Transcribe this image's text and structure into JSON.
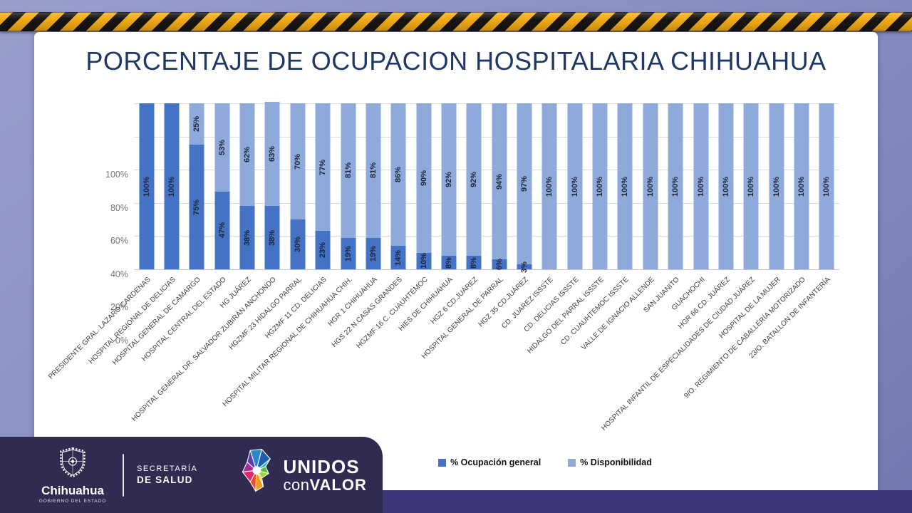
{
  "title": "PORCENTAJE DE OCUPACION HOSPITALARIA CHIHUAHUA",
  "chart_data": {
    "type": "bar",
    "stacked": true,
    "ylim": [
      0,
      100
    ],
    "y_ticks": [
      "0%",
      "20%",
      "40%",
      "60%",
      "80%",
      "100%"
    ],
    "grid": true,
    "legend_position": "bottom",
    "categories": [
      "PRESIDENTE GRAL. LAZARO CARDENAS",
      "HOSPITAL REGIONAL DE DELICIAS",
      "HOSPITAL GENERAL DE CAMARGO",
      "HOSPITAL CENTRAL DEL ESTADO",
      "HG  JUÁREZ",
      "HOSPITAL GENERAL DR. SALVADOR ZUBIRÁN ANCHONDO",
      "HGZMF 23 HIDALGO PARRAL",
      "HGZMF 11 CD. DELICIAS",
      "HOSPITAL MILITAR REGIONAL DE CHIHUAHUA CHIH.",
      "HGR 1 CHIHUAHUA",
      "HGS 22 N.CASAS GRANDES",
      "HGZMF 16 C. CUAUHTÉMOC",
      "HIES DE CHIHUAHUA",
      "HGZ 6 CD.JUÁREZ",
      "HOSPITAL GENERAL DE PARRAL",
      "HGZ 35 CD.JUÁREZ",
      "CD. JUAREZ ISSSTE",
      "CD. DELICIAS ISSSTE",
      "HIDALGO DEL PARRAL ISSSTE",
      "CD. CUAUHTEMOC ISSSTE",
      "VALLE DE IGNACIO ALLENDE",
      "SAN JUANITO",
      "GUACHOCHI",
      "HGR 66 CD. JUÁREZ",
      "HOSPITAL INFANTIL DE ESPECIALIDADES DE CIUDAD JUÁREZ",
      "HOSPITAL DE LA MUJER",
      "9/O. REGIMIENTO DE CABALLERÍA MOTORIZADO",
      "23/O. BATALLON DE INFANTERÍA"
    ],
    "series": [
      {
        "name": "% Ocupación general",
        "color": "#4472C4",
        "values": [
          100,
          100,
          75,
          47,
          38,
          38,
          30,
          23,
          19,
          19,
          14,
          10,
          8,
          8,
          6,
          3,
          0,
          0,
          0,
          0,
          0,
          0,
          0,
          0,
          0,
          0,
          0,
          0
        ]
      },
      {
        "name": "% Disponibilidad",
        "color": "#8EAADB",
        "values": [
          0,
          0,
          25,
          53,
          62,
          63,
          70,
          77,
          81,
          81,
          86,
          90,
          92,
          92,
          94,
          97,
          100,
          100,
          100,
          100,
          100,
          100,
          100,
          100,
          100,
          100,
          100,
          100
        ]
      }
    ]
  },
  "footer": {
    "state_name": "Chihuahua",
    "state_sub": "GOBIERNO DEL ESTADO",
    "secretaria_line1": "SECRETARÍA",
    "secretaria_line2": "DE SALUD",
    "unidos_line1": "UNIDOS",
    "unidos_con": "con",
    "unidos_valor": "VALOR"
  },
  "colors": {
    "occupancy_blue": "#4472C4",
    "availability_blue": "#8EAADB",
    "title_navy": "#1F3864",
    "hazard_yellow": "#F3AC18",
    "hazard_black": "#181512",
    "footer_purple": "#302B50",
    "strip_purple": "#3D3677"
  }
}
